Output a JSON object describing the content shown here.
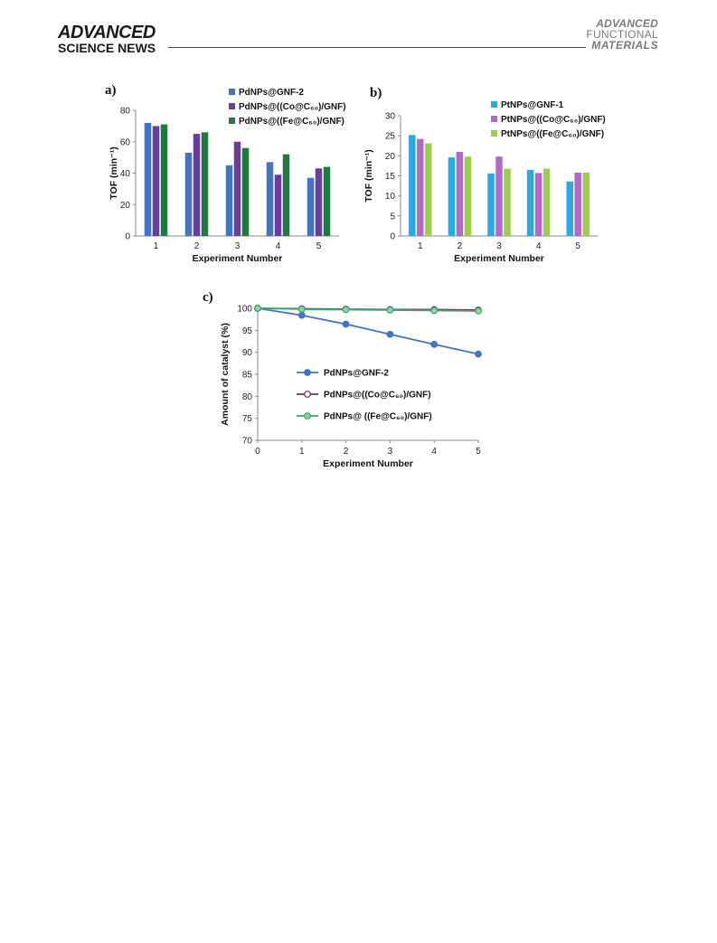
{
  "header": {
    "left_top": "ADVANCED",
    "left_bottom": "SCIENCE NEWS",
    "right_line1": "ADVANCED",
    "right_line2": "FUNCTIONAL",
    "right_line3": "MATERIALS"
  },
  "chart_data": [
    {
      "panel": "a)",
      "type": "bar",
      "xlabel": "Experiment Number",
      "ylabel": "TOF (min⁻¹)",
      "ylim": [
        0,
        80
      ],
      "yticks": [
        0,
        20,
        40,
        60,
        80
      ],
      "categories": [
        "1",
        "2",
        "3",
        "4",
        "5"
      ],
      "legend_position": "top",
      "series": [
        {
          "name": "PdNPs@GNF-2",
          "color": "#4472c4",
          "values": [
            72,
            53,
            45,
            47,
            37
          ]
        },
        {
          "name": "PdNPs@((Co@C₆₀)/GNF)",
          "color": "#6a3d9a",
          "values": [
            70,
            65,
            60,
            39,
            43
          ]
        },
        {
          "name": "PdNPs@((Fe@C₆₀)/GNF)",
          "color": "#1e7b3c",
          "values": [
            71,
            66,
            56,
            52,
            44
          ]
        }
      ]
    },
    {
      "panel": "b)",
      "type": "bar",
      "xlabel": "Experiment Number",
      "ylabel": "TOF (min⁻¹)",
      "ylim": [
        0,
        30
      ],
      "yticks": [
        0,
        5,
        10,
        15,
        20,
        25,
        30
      ],
      "categories": [
        "1",
        "2",
        "3",
        "4",
        "5"
      ],
      "legend_position": "top",
      "series": [
        {
          "name": "PtNPs@GNF-1",
          "color": "#29abe2",
          "values": [
            25.2,
            19.6,
            15.6,
            16.5,
            13.6
          ]
        },
        {
          "name": "PtNPs@((Co@C₆₀)/GNF)",
          "color": "#b469c9",
          "values": [
            24.2,
            21.0,
            19.8,
            15.7,
            15.8
          ]
        },
        {
          "name": "PtNPs@((Fe@C₆₀)/GNF)",
          "color": "#9acd50",
          "values": [
            23.1,
            19.8,
            16.8,
            16.8,
            15.8
          ]
        }
      ]
    },
    {
      "panel": "c)",
      "type": "line",
      "xlabel": "Experiment Number",
      "ylabel": "Amount of catalyst (%)",
      "ylim": [
        70,
        100
      ],
      "yticks": [
        70,
        75,
        80,
        85,
        90,
        95,
        100
      ],
      "xlim": [
        0,
        5
      ],
      "x": [
        0,
        1,
        2,
        3,
        4,
        5
      ],
      "legend_position": "center",
      "series": [
        {
          "name": "PdNPs@GNF-2",
          "color": "#4472c4",
          "marker": "filled",
          "values": [
            100,
            98.4,
            96.4,
            94.1,
            91.8,
            89.6
          ]
        },
        {
          "name": "PdNPs@((Co@C₆₀)/GNF)",
          "color": "#7b2c59",
          "marker": "open",
          "values": [
            100,
            99.9,
            99.8,
            99.7,
            99.7,
            99.6
          ]
        },
        {
          "name": "PdNPs@ ((Fe@C₆₀)/GNF)",
          "color": "#3aa76d",
          "marker": "filled-light",
          "values": [
            100,
            99.8,
            99.7,
            99.6,
            99.5,
            99.4
          ]
        }
      ]
    }
  ]
}
